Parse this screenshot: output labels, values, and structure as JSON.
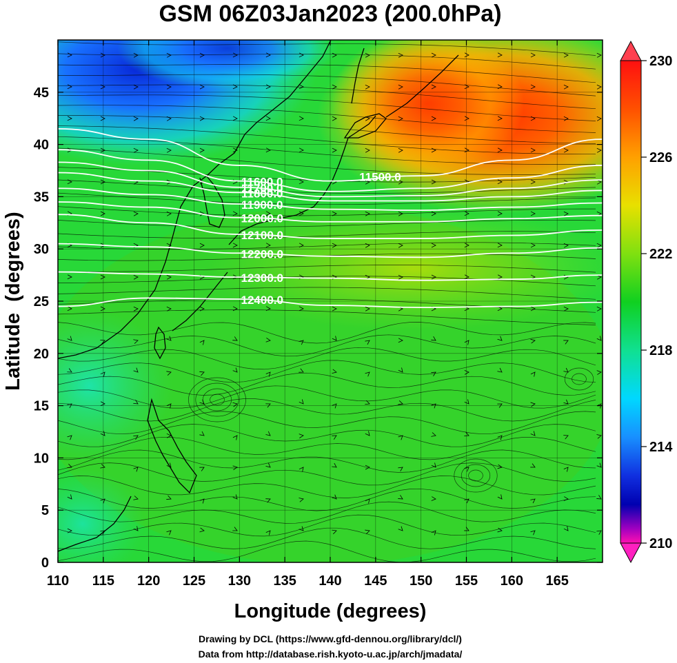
{
  "title": "GSM 06Z03Jan2023 (200.0hPa)",
  "xlabel": "Longitude (degrees)",
  "ylabel": "Latitude  (degrees)",
  "credit_line1": "Drawing by DCL (https://www.gfd-dennou.org/library/dcl/)",
  "credit_line2": "Data from http://database.rish.kyoto-u.ac.jp/arch/jmadata/",
  "colorbar": {
    "min": 210,
    "max": 230,
    "ticks": [
      "230",
      "226",
      "222",
      "218",
      "214",
      "210"
    ],
    "tick_values": [
      230,
      226,
      222,
      218,
      214,
      210
    ],
    "colors": [
      "#ff2060",
      "#ff0000",
      "#ff8000",
      "#ffd000",
      "#c8e000",
      "#30d020",
      "#10d040",
      "#10e0a0",
      "#00d0ff",
      "#1060ff",
      "#0010c0",
      "#8000c0",
      "#ff00c0"
    ]
  },
  "chart_data": {
    "type": "heatmap",
    "title": "GSM 06Z03Jan2023 (200.0hPa)",
    "xlabel": "Longitude (degrees)",
    "ylabel": "Latitude  (degrees)",
    "xlim": [
      110,
      170
    ],
    "ylim": [
      0,
      50
    ],
    "x_ticks": [
      110,
      115,
      120,
      125,
      130,
      135,
      140,
      145,
      150,
      155,
      160,
      165
    ],
    "y_ticks": [
      0,
      5,
      10,
      15,
      20,
      25,
      30,
      35,
      40,
      45
    ],
    "shading_range": [
      210,
      230
    ],
    "field_samples": [
      {
        "lon": 115,
        "lat": 48,
        "value": 214
      },
      {
        "lon": 122,
        "lat": 46,
        "value": 217
      },
      {
        "lon": 128,
        "lat": 47,
        "value": 216
      },
      {
        "lon": 135,
        "lat": 45,
        "value": 220
      },
      {
        "lon": 150,
        "lat": 46,
        "value": 228
      },
      {
        "lon": 157,
        "lat": 45,
        "value": 229
      },
      {
        "lon": 165,
        "lat": 45,
        "value": 228
      },
      {
        "lon": 145,
        "lat": 40,
        "value": 226
      },
      {
        "lon": 160,
        "lat": 38,
        "value": 225
      },
      {
        "lon": 140,
        "lat": 30,
        "value": 223
      },
      {
        "lon": 125,
        "lat": 30,
        "value": 222
      },
      {
        "lon": 140,
        "lat": 15,
        "value": 222
      },
      {
        "lon": 112,
        "lat": 18,
        "value": 219
      },
      {
        "lon": 112,
        "lat": 3,
        "value": 220
      }
    ],
    "contours": [
      {
        "label": "11500.0",
        "value": 11500,
        "points": [
          [
            110,
            41.5
          ],
          [
            120,
            40.5
          ],
          [
            130,
            38.0
          ],
          [
            140,
            36.5
          ],
          [
            150,
            37.0
          ],
          [
            160,
            38.5
          ],
          [
            170,
            40.5
          ]
        ]
      },
      {
        "label": "11600.0",
        "value": 11600,
        "points": [
          [
            110,
            39.5
          ],
          [
            120,
            38.5
          ],
          [
            130,
            36.5
          ],
          [
            140,
            35.5
          ],
          [
            150,
            35.8
          ],
          [
            160,
            36.8
          ],
          [
            170,
            38.0
          ]
        ]
      },
      {
        "label": "11700.0",
        "value": 11700,
        "points": [
          [
            110,
            38.3
          ],
          [
            120,
            37.5
          ],
          [
            130,
            35.9
          ],
          [
            140,
            35.0
          ],
          [
            150,
            35.1
          ],
          [
            160,
            35.8
          ],
          [
            170,
            36.6
          ]
        ]
      },
      {
        "label": "11800.0",
        "value": 11800,
        "points": [
          [
            110,
            37.3
          ],
          [
            120,
            36.5
          ],
          [
            130,
            35.4
          ],
          [
            140,
            34.6
          ],
          [
            150,
            34.6
          ],
          [
            160,
            35.0
          ],
          [
            170,
            35.6
          ]
        ]
      },
      {
        "label": "11900.0",
        "value": 11900,
        "points": [
          [
            110,
            35.8
          ],
          [
            120,
            35.2
          ],
          [
            130,
            34.3
          ],
          [
            140,
            33.8
          ],
          [
            150,
            33.7
          ],
          [
            160,
            34.0
          ],
          [
            170,
            34.4
          ]
        ]
      },
      {
        "label": "12000.0",
        "value": 12000,
        "points": [
          [
            110,
            34.5
          ],
          [
            120,
            34.0
          ],
          [
            130,
            33.0
          ],
          [
            140,
            32.6
          ],
          [
            150,
            32.6
          ],
          [
            160,
            32.9
          ],
          [
            170,
            33.2
          ]
        ]
      },
      {
        "label": "12100.0",
        "value": 12100,
        "points": [
          [
            110,
            33.3
          ],
          [
            120,
            32.5
          ],
          [
            130,
            31.4
          ],
          [
            140,
            31.0
          ],
          [
            150,
            31.0
          ],
          [
            160,
            31.3
          ],
          [
            170,
            31.8
          ]
        ]
      },
      {
        "label": "12200.0",
        "value": 12200,
        "points": [
          [
            110,
            30.5
          ],
          [
            120,
            30.2
          ],
          [
            130,
            29.6
          ],
          [
            140,
            29.3
          ],
          [
            150,
            29.2
          ],
          [
            160,
            29.6
          ],
          [
            170,
            30.1
          ]
        ]
      },
      {
        "label": "12300.0",
        "value": 12300,
        "points": [
          [
            110,
            27.8
          ],
          [
            120,
            27.6
          ],
          [
            130,
            27.3
          ],
          [
            140,
            27.2
          ],
          [
            150,
            27.0
          ],
          [
            160,
            27.1
          ],
          [
            170,
            27.5
          ]
        ]
      },
      {
        "label": "12400.0",
        "value": 12400,
        "points": [
          [
            110,
            24.5
          ],
          [
            120,
            25.3
          ],
          [
            130,
            25.2
          ],
          [
            140,
            24.6
          ],
          [
            150,
            24.4
          ],
          [
            160,
            24.5
          ],
          [
            170,
            24.9
          ]
        ]
      }
    ]
  }
}
